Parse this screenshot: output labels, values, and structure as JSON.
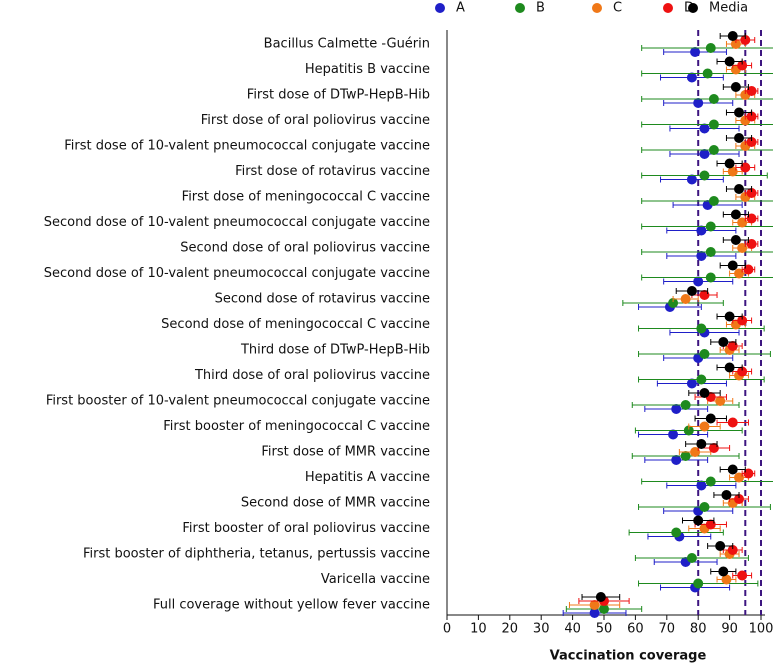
{
  "chart_data": {
    "type": "dot_errorbar",
    "x_label": "Vaccination coverage",
    "categories": [
      "Bacillus Calmette -Guérin",
      "Hepatitis B vaccine",
      "First dose of DTwP-HepB-Hib",
      "First dose of oral poliovirus vaccine",
      "First dose of 10-valent pneumococcal conjugate vaccine",
      "First dose of rotavirus vaccine",
      "First dose of meningococcal C vaccine",
      "Second dose of 10-valent pneumococcal conjugate vaccine",
      "Second dose of oral poliovirus vaccine",
      "Second dose of 10-valent pneumococcal conjugate vaccine",
      "Second dose of rotavirus vaccine",
      "Second dose of meningococcal C vaccine",
      "Third dose of DTwP-HepB-Hib",
      "Third dose of oral poliovirus vaccine",
      "First booster of 10-valent pneumococcal conjugate vaccine",
      "First booster of meningococcal C vaccine",
      "First dose of MMR vaccine",
      "Hepatitis A vaccine",
      "Second dose of MMR vaccine",
      "First booster of oral poliovirus vaccine",
      "First booster of diphtheria, tetanus, pertussis vaccine",
      "Varicella vaccine",
      "Full coverage without yellow fever vaccine"
    ],
    "series": [
      {
        "name": "A",
        "color": "#1f1fc8",
        "values": [
          79,
          78,
          80,
          82,
          82,
          78,
          83,
          81,
          81,
          80,
          71,
          82,
          80,
          78,
          73,
          72,
          73,
          81,
          80,
          74,
          76,
          79,
          47
        ],
        "errors": [
          10,
          10,
          11,
          11,
          11,
          10,
          11,
          11,
          11,
          11,
          10,
          11,
          11,
          11,
          10,
          11,
          10,
          11,
          11,
          10,
          10,
          11,
          10
        ]
      },
      {
        "name": "B",
        "color": "#1e8a1e",
        "values": [
          84,
          83,
          85,
          85,
          85,
          82,
          85,
          84,
          84,
          84,
          72,
          81,
          82,
          81,
          76,
          77,
          76,
          84,
          82,
          73,
          78,
          80,
          50
        ],
        "errors": [
          22,
          21,
          23,
          23,
          23,
          20,
          23,
          22,
          22,
          22,
          16,
          20,
          21,
          20,
          17,
          17,
          17,
          22,
          21,
          15,
          18,
          19,
          12
        ]
      },
      {
        "name": "C",
        "color": "#f07818",
        "values": [
          92,
          92,
          95,
          95,
          95,
          91,
          95,
          94,
          94,
          93,
          76,
          92,
          90,
          93,
          87,
          82,
          79,
          93,
          91,
          82,
          90,
          89,
          47
        ],
        "errors": [
          3,
          3,
          3,
          3,
          3,
          3,
          3,
          3,
          3,
          3,
          4,
          3,
          3,
          3,
          4,
          5,
          5,
          3,
          3,
          5,
          3,
          3,
          8
        ]
      },
      {
        "name": "D",
        "color": "#ee1111",
        "values": [
          95,
          94,
          97,
          97,
          97,
          95,
          97,
          97,
          97,
          96,
          82,
          94,
          91,
          94,
          84,
          91,
          85,
          96,
          93,
          84,
          91,
          94,
          50
        ],
        "errors": [
          3,
          3,
          2,
          2,
          2,
          3,
          2,
          2,
          2,
          2,
          4,
          3,
          3,
          3,
          5,
          5,
          5,
          2,
          3,
          5,
          3,
          3,
          8
        ]
      },
      {
        "name": "Media",
        "color": "#000000",
        "values": [
          91,
          90,
          92,
          93,
          93,
          90,
          93,
          92,
          92,
          91,
          78,
          90,
          88,
          90,
          82,
          84,
          81,
          91,
          89,
          80,
          87,
          88,
          49
        ],
        "errors": [
          4,
          4,
          4,
          4,
          4,
          4,
          4,
          4,
          4,
          4,
          5,
          4,
          4,
          4,
          5,
          5,
          5,
          4,
          4,
          5,
          4,
          4,
          6
        ]
      }
    ],
    "xlim": [
      0,
      100
    ],
    "xticks": [
      0,
      10,
      20,
      30,
      40,
      50,
      60,
      70,
      80,
      90,
      100
    ],
    "reference_lines": [
      80,
      95,
      100
    ],
    "reference_color": "#3d1580",
    "legend": "top"
  }
}
